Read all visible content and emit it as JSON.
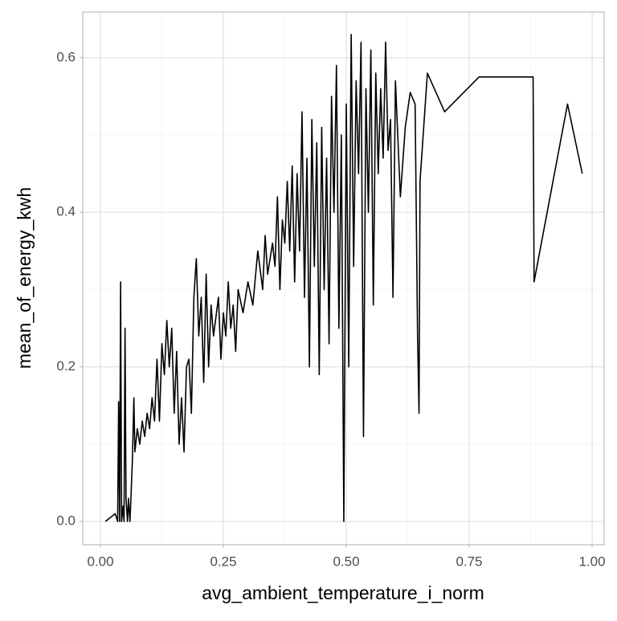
{
  "chart_data": {
    "type": "line",
    "x_label": "avg_ambient_temperature_i_norm",
    "y_label": "mean_of_energy_kwh",
    "color": "#000000",
    "grid": true,
    "xlim": [
      -0.036,
      1.0245
    ],
    "ylim": [
      -0.03,
      0.659
    ],
    "xticks": [
      {
        "value": 0,
        "label": "0.00"
      },
      {
        "value": 0.25,
        "label": "0.25"
      },
      {
        "value": 0.5,
        "label": "0.50"
      },
      {
        "value": 0.75,
        "label": "0.75"
      },
      {
        "value": 1,
        "label": "1.00"
      }
    ],
    "yticks": [
      {
        "value": 0,
        "label": "0.0"
      },
      0.2,
      0.4,
      0.6
    ],
    "x": [
      0.01,
      0.03,
      0.035,
      0.037,
      0.039,
      0.041,
      0.043,
      0.046,
      0.048,
      0.05,
      0.052,
      0.055,
      0.057,
      0.06,
      0.062,
      0.065,
      0.068,
      0.07,
      0.075,
      0.08,
      0.085,
      0.09,
      0.095,
      0.1,
      0.105,
      0.11,
      0.115,
      0.12,
      0.125,
      0.13,
      0.135,
      0.14,
      0.145,
      0.15,
      0.155,
      0.16,
      0.165,
      0.17,
      0.175,
      0.18,
      0.185,
      0.19,
      0.195,
      0.2,
      0.205,
      0.21,
      0.215,
      0.22,
      0.225,
      0.23,
      0.24,
      0.245,
      0.25,
      0.255,
      0.26,
      0.265,
      0.27,
      0.275,
      0.28,
      0.29,
      0.3,
      0.31,
      0.32,
      0.33,
      0.335,
      0.34,
      0.35,
      0.355,
      0.36,
      0.365,
      0.37,
      0.375,
      0.38,
      0.385,
      0.39,
      0.395,
      0.4,
      0.405,
      0.41,
      0.415,
      0.42,
      0.425,
      0.43,
      0.435,
      0.44,
      0.445,
      0.45,
      0.455,
      0.46,
      0.465,
      0.47,
      0.475,
      0.48,
      0.485,
      0.49,
      0.495,
      0.5,
      0.505,
      0.51,
      0.515,
      0.52,
      0.525,
      0.53,
      0.535,
      0.54,
      0.545,
      0.55,
      0.555,
      0.56,
      0.565,
      0.57,
      0.575,
      0.58,
      0.585,
      0.59,
      0.595,
      0.6,
      0.61,
      0.62,
      0.63,
      0.64,
      0.645,
      0.648,
      0.65,
      0.665,
      0.7,
      0.77,
      0.88,
      0.882,
      0.95,
      0.98
    ],
    "values": [
      0,
      0.01,
      0,
      0.155,
      0,
      0.31,
      0,
      0.02,
      0,
      0.25,
      0.03,
      0,
      0.03,
      0,
      0.03,
      0.08,
      0.16,
      0.09,
      0.12,
      0.1,
      0.13,
      0.11,
      0.14,
      0.12,
      0.16,
      0.13,
      0.21,
      0.13,
      0.23,
      0.19,
      0.26,
      0.2,
      0.25,
      0.14,
      0.22,
      0.1,
      0.16,
      0.09,
      0.2,
      0.21,
      0.14,
      0.29,
      0.34,
      0.24,
      0.29,
      0.18,
      0.32,
      0.2,
      0.28,
      0.24,
      0.29,
      0.21,
      0.27,
      0.24,
      0.31,
      0.25,
      0.28,
      0.22,
      0.3,
      0.27,
      0.31,
      0.28,
      0.35,
      0.3,
      0.37,
      0.32,
      0.36,
      0.33,
      0.42,
      0.3,
      0.39,
      0.36,
      0.44,
      0.35,
      0.46,
      0.31,
      0.45,
      0.35,
      0.53,
      0.29,
      0.47,
      0.2,
      0.52,
      0.33,
      0.49,
      0.19,
      0.51,
      0.3,
      0.47,
      0.23,
      0.55,
      0.4,
      0.59,
      0.25,
      0.5,
      0,
      0.54,
      0.2,
      0.63,
      0.33,
      0.57,
      0.45,
      0.62,
      0.11,
      0.56,
      0.4,
      0.61,
      0.28,
      0.58,
      0.45,
      0.56,
      0.47,
      0.62,
      0.48,
      0.52,
      0.29,
      0.57,
      0.42,
      0.51,
      0.555,
      0.54,
      0.24,
      0.14,
      0.44,
      0.58,
      0.53,
      0.575,
      0.575,
      0.31,
      0.54,
      0.45
    ]
  }
}
